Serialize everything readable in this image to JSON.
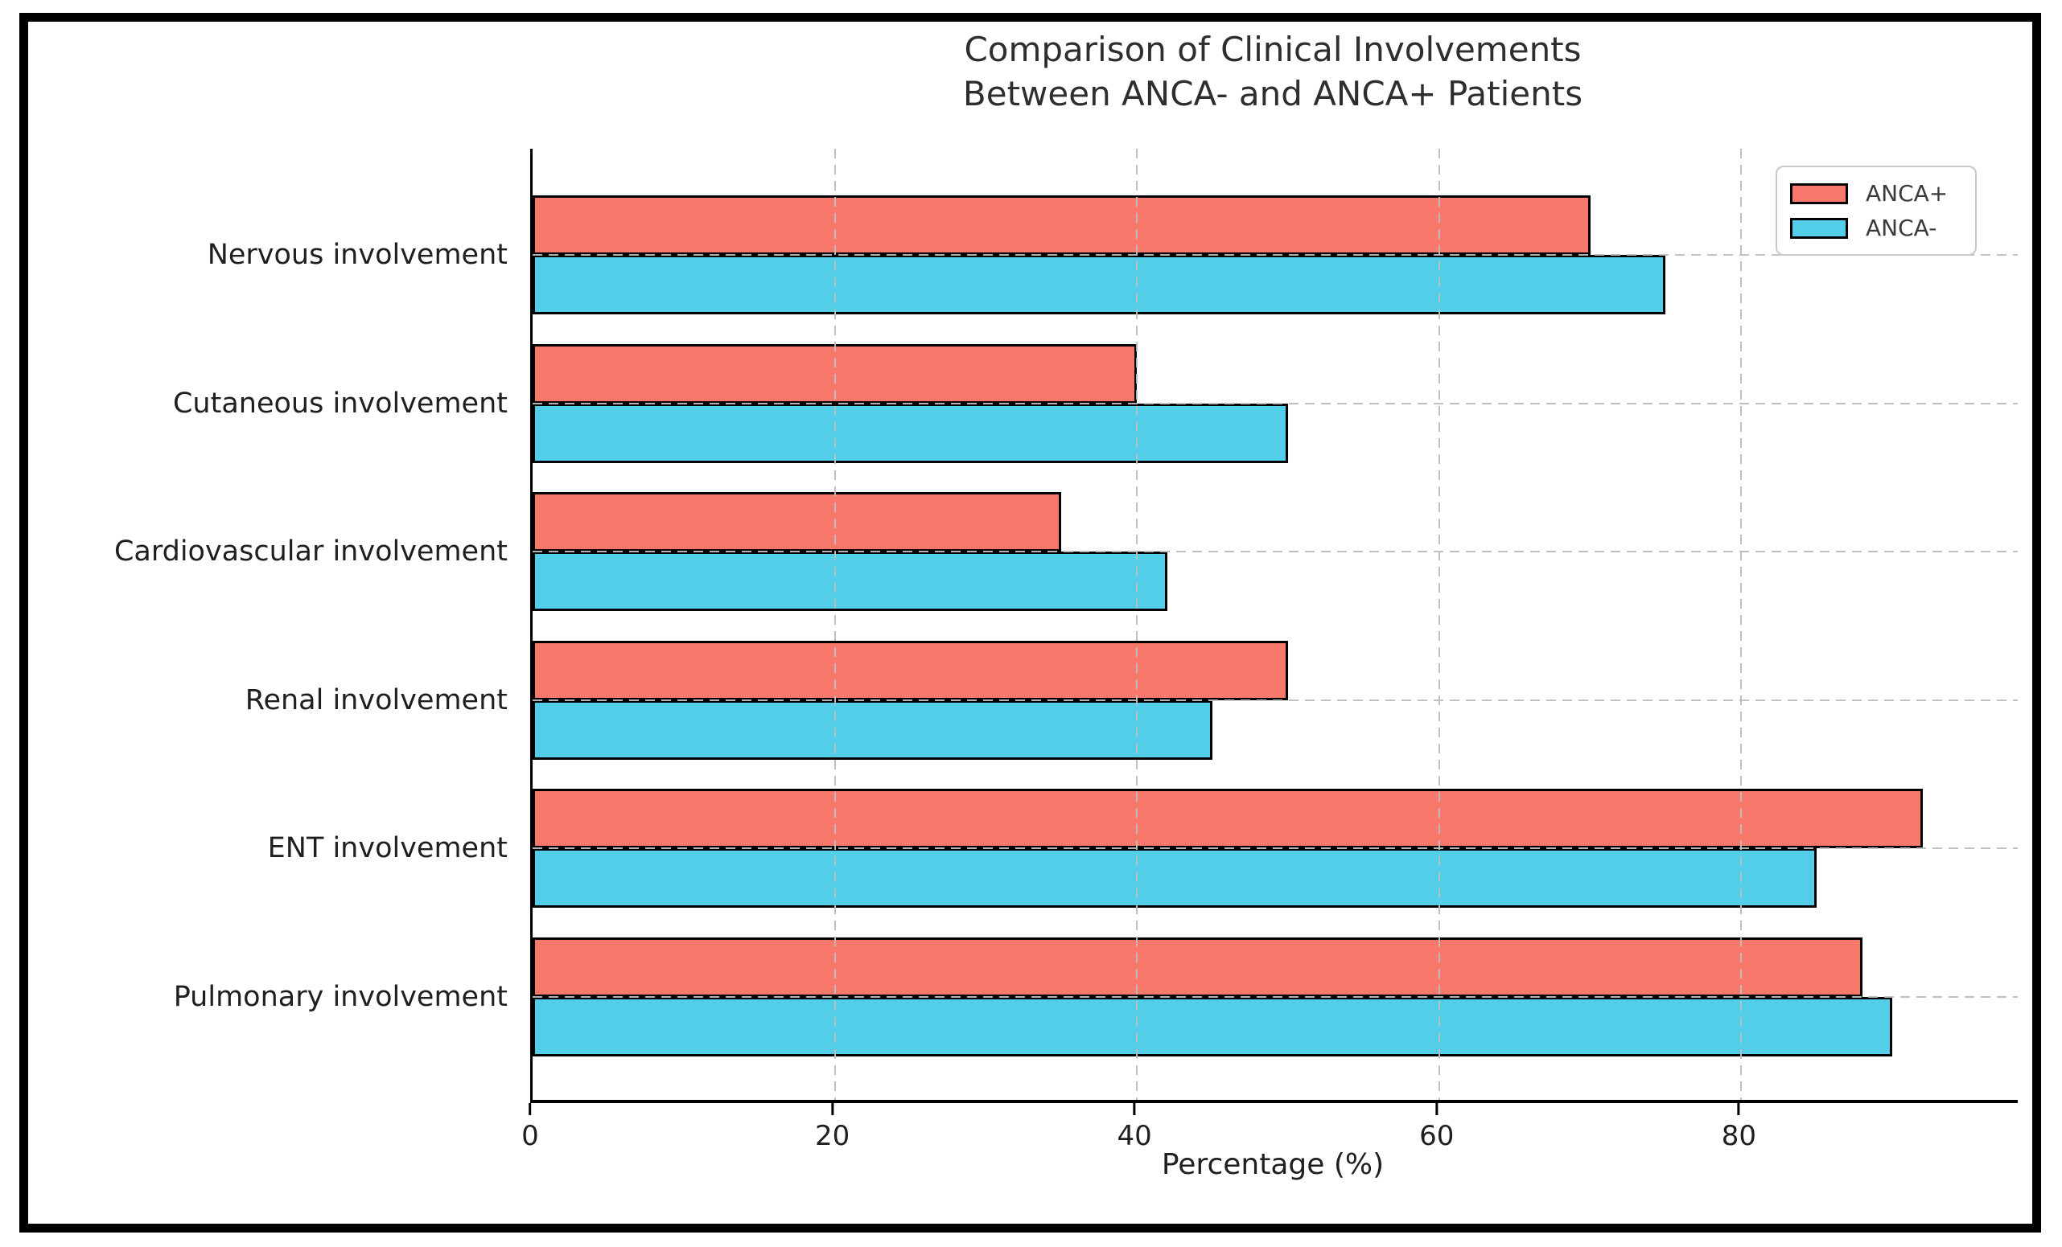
{
  "chart_data": {
    "type": "bar",
    "orientation": "horizontal",
    "title": "Comparison of Clinical Involvements Between ANCA- and ANCA+ Patients",
    "title_line1": "Comparison of Clinical Involvements",
    "title_line2": "Between ANCA- and ANCA+ Patients",
    "categories": [
      "Nervous involvement",
      "Cutaneous involvement",
      "Cardiovascular involvement",
      "Renal involvement",
      "ENT involvement",
      "Pulmonary involvement"
    ],
    "series": [
      {
        "name": "ANCA+",
        "color": "#F8796B",
        "values": [
          70,
          40,
          35,
          50,
          92,
          88
        ]
      },
      {
        "name": "ANCA-",
        "color": "#52CEE8",
        "values": [
          75,
          50,
          42,
          45,
          85,
          90
        ]
      }
    ],
    "xlabel": "Percentage (%)",
    "x_ticks": [
      0,
      20,
      40,
      60,
      80
    ],
    "x_tick_labels": [
      "0",
      "20",
      "40",
      "60",
      "80"
    ],
    "xlim": [
      0,
      98.3
    ],
    "grid": "dashed",
    "gridline_color": "#bebebe",
    "axis_color": "#000000",
    "bar_edge_color": "#000000",
    "legend_position": "top-right",
    "legend": [
      "ANCA+",
      "ANCA-"
    ]
  }
}
